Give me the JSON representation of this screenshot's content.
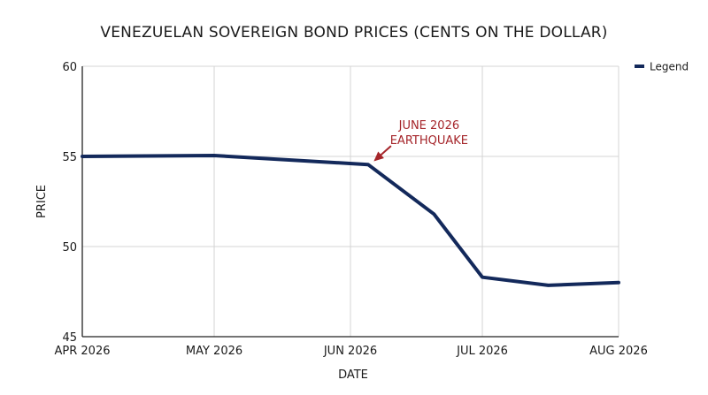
{
  "chart_data": {
    "type": "line",
    "title": "VENEZUELAN SOVEREIGN BOND PRICES (CENTS ON THE DOLLAR)",
    "xlabel": "DATE",
    "ylabel": "PRICE",
    "ylim": [
      45,
      60
    ],
    "yticks": [
      "45",
      "50",
      "55",
      "60"
    ],
    "xticks": [
      "APR 2026",
      "MAY 2026",
      "JUN 2026",
      "JUL 2026",
      "AUG 2026"
    ],
    "xlim": [
      "2026-04-01",
      "2026-08-01"
    ],
    "grid": true,
    "legend": {
      "label": "Legend",
      "placement": "top-right"
    },
    "series": [
      {
        "color": "#13295b",
        "points": [
          {
            "x": "2026-04-01",
            "y": 55.0
          },
          {
            "x": "2026-05-01",
            "y": 55.05
          },
          {
            "x": "2026-06-05",
            "y": 54.55
          },
          {
            "x": "2026-06-20",
            "y": 51.8
          },
          {
            "x": "2026-07-01",
            "y": 48.3
          },
          {
            "x": "2026-07-16",
            "y": 47.85
          },
          {
            "x": "2026-08-01",
            "y": 48.0
          }
        ]
      }
    ],
    "annotations": [
      {
        "text_lines": [
          "JUNE 2026",
          "EARTHQUAKE"
        ],
        "x": "2026-06-05",
        "y": 54.55,
        "color": "#a5252a"
      }
    ]
  }
}
